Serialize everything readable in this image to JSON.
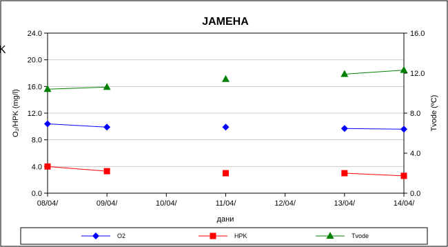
{
  "stray_text": "K",
  "chart_data": {
    "type": "line",
    "title": "JAMEHA",
    "xlabel": "дани",
    "ylabel_left": "O₂/HPK (mg/l)",
    "ylabel_right": "Tvode (ºC)",
    "categories": [
      "08/04/",
      "09/04/",
      "10/04/",
      "11/04/",
      "12/04/",
      "13/04/",
      "14/04/"
    ],
    "ylim_left": [
      0,
      24
    ],
    "ylim_right": [
      0,
      16
    ],
    "yticks_left": [
      "0.0",
      "4.0",
      "8.0",
      "12.0",
      "16.0",
      "20.0",
      "24.0"
    ],
    "yticks_right": [
      "0.0",
      "4.0",
      "8.0",
      "12.0",
      "16.0"
    ],
    "grid": true,
    "legend_position": "bottom",
    "series": [
      {
        "name": "O2",
        "axis": "left",
        "color": "#0000ff",
        "marker": "diamond",
        "values": [
          10.4,
          9.9,
          null,
          9.9,
          null,
          9.7,
          9.6
        ]
      },
      {
        "name": "HPK",
        "axis": "left",
        "color": "#ff0000",
        "marker": "square",
        "values": [
          4.0,
          3.3,
          null,
          3.0,
          null,
          3.0,
          2.6
        ]
      },
      {
        "name": "Tvode",
        "axis": "right",
        "color": "#008000",
        "marker": "triangle",
        "values": [
          10.4,
          10.6,
          null,
          11.4,
          null,
          11.9,
          12.3
        ]
      }
    ]
  }
}
